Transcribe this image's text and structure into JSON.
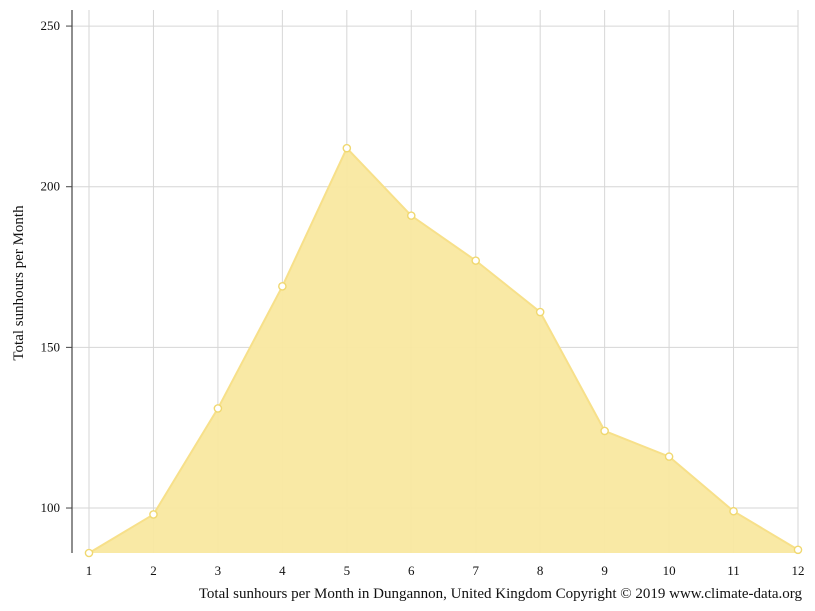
{
  "chart_data": {
    "type": "area",
    "x": [
      1,
      2,
      3,
      4,
      5,
      6,
      7,
      8,
      9,
      10,
      11,
      12
    ],
    "series": [
      {
        "values": [
          86,
          98,
          131,
          169,
          212,
          191,
          177,
          161,
          124,
          116,
          99,
          87
        ]
      }
    ],
    "x_ticks": [
      "1",
      "2",
      "3",
      "4",
      "5",
      "6",
      "7",
      "8",
      "9",
      "10",
      "11",
      "12"
    ],
    "y_ticks": [
      100,
      150,
      200,
      250
    ],
    "ylim": [
      86,
      255
    ],
    "xlim": [
      1,
      12
    ],
    "xlabel": "",
    "ylabel": "Total sunhours per Month",
    "caption": "Total sunhours per Month in Dungannon, United Kingdom Copyright © 2019 www.climate-data.org",
    "grid": true,
    "colors": {
      "fill": "#f9e8a0",
      "line": "#f7e08a",
      "grid": "#d6d6d6",
      "axis": "#444444"
    }
  }
}
